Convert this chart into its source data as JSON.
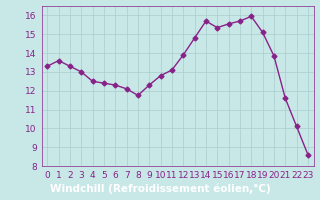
{
  "x": [
    0,
    1,
    2,
    3,
    4,
    5,
    6,
    7,
    8,
    9,
    10,
    11,
    12,
    13,
    14,
    15,
    16,
    17,
    18,
    19,
    20,
    21,
    22,
    23
  ],
  "y": [
    13.3,
    13.6,
    13.3,
    13.0,
    12.5,
    12.4,
    12.3,
    12.1,
    11.75,
    12.3,
    12.8,
    13.1,
    13.9,
    14.8,
    15.7,
    15.35,
    15.55,
    15.7,
    15.95,
    15.1,
    13.85,
    11.6,
    10.1,
    8.6
  ],
  "line_color": "#882288",
  "marker": "D",
  "marker_size": 2.5,
  "bg_color": "#c8e8e8",
  "grid_color": "#aacccc",
  "xlabel": "Windchill (Refroidissement éolien,°C)",
  "xlabel_fontsize": 7.5,
  "ylim": [
    8,
    16.5
  ],
  "xlim": [
    -0.5,
    23.5
  ],
  "yticks": [
    8,
    9,
    10,
    11,
    12,
    13,
    14,
    15,
    16
  ],
  "xticks": [
    0,
    1,
    2,
    3,
    4,
    5,
    6,
    7,
    8,
    9,
    10,
    11,
    12,
    13,
    14,
    15,
    16,
    17,
    18,
    19,
    20,
    21,
    22,
    23
  ],
  "tick_fontsize": 6.5,
  "line_width": 1.0,
  "xlabel_bg": "#882288",
  "xlabel_fg": "#ffffff",
  "top_color": "#c8e8e8"
}
